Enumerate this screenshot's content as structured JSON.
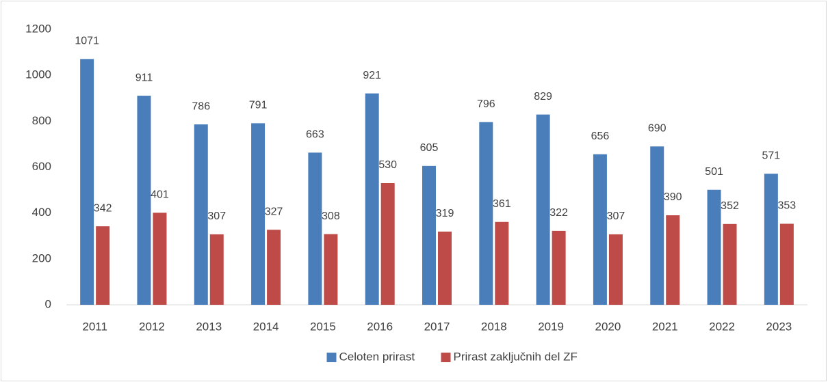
{
  "chart_data": {
    "type": "bar",
    "categories": [
      "2011",
      "2012",
      "2013",
      "2014",
      "2015",
      "2016",
      "2017",
      "2018",
      "2019",
      "2020",
      "2021",
      "2022",
      "2023"
    ],
    "series": [
      {
        "name": "Celoten prirast",
        "color": "#4a7ebb",
        "values": [
          1071,
          911,
          786,
          791,
          663,
          921,
          605,
          796,
          829,
          656,
          690,
          501,
          571
        ]
      },
      {
        "name": "Prirast zaključnih del ZF",
        "color": "#be4b48",
        "values": [
          342,
          401,
          307,
          327,
          308,
          530,
          319,
          361,
          322,
          307,
          390,
          352,
          353
        ]
      }
    ],
    "ylim": [
      0,
      1200
    ],
    "yticks": [
      0,
      200,
      400,
      600,
      800,
      1000,
      1200
    ],
    "grid": false,
    "legend": "bottom"
  }
}
